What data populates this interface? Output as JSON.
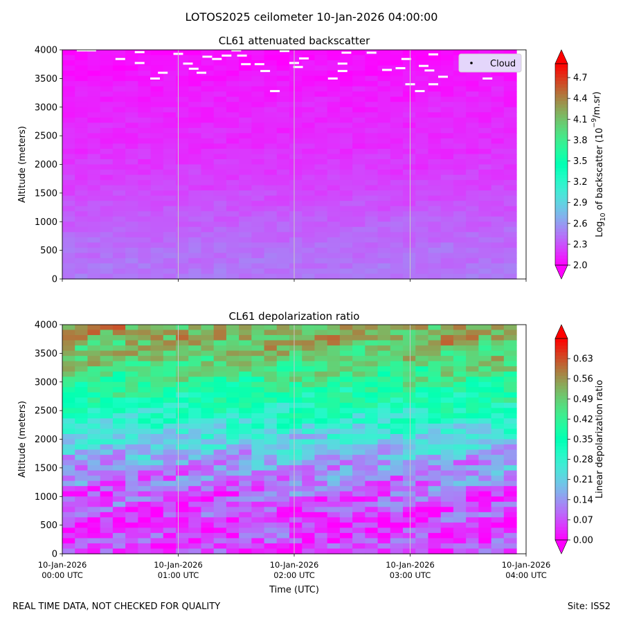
{
  "figure": {
    "suptitle": "LOTOS2025 ceilometer 10-Jan-2026 04:00:00",
    "footer_left": "REAL TIME DATA, NOT CHECKED FOR QUALITY",
    "footer_right": "Site: ISS2"
  },
  "chart_data": [
    {
      "type": "heatmap",
      "title": "CL61 attenuated backscatter",
      "ylabel": "Altitude (meters)",
      "xlabel": "",
      "x_range_utc": [
        "2026-01-10 00:00",
        "2026-01-10 04:00"
      ],
      "x_data_end_utc": "2026-01-10 03:55",
      "ylim": [
        0,
        4000
      ],
      "yticks": [
        0,
        500,
        1000,
        1500,
        2000,
        2500,
        3000,
        3500,
        4000
      ],
      "xticks_hours": [
        0,
        1,
        2,
        3,
        4
      ],
      "xtick_labels_visible": false,
      "grid": "vertical lines at each hour",
      "colormap": "rainbow",
      "colorbar": {
        "label_prefix": "Log",
        "label_sub": "10",
        "label_mid": " of backscatter (10",
        "label_sup": "−9",
        "label_suffix": "/m.sr)",
        "range": [
          2.0,
          4.9
        ],
        "ticks": [
          "2.0",
          "2.3",
          "2.6",
          "2.9",
          "3.2",
          "3.5",
          "3.8",
          "4.1",
          "4.4",
          "4.7"
        ],
        "extend": "both"
      },
      "legend": {
        "placement": "top-right",
        "entries": [
          "Cloud"
        ]
      },
      "profile": [
        {
          "altitude": 0,
          "value": 2.45
        },
        {
          "altitude": 500,
          "value": 2.42
        },
        {
          "altitude": 1000,
          "value": 2.36
        },
        {
          "altitude": 1500,
          "value": 2.27
        },
        {
          "altitude": 2000,
          "value": 2.2
        },
        {
          "altitude": 2500,
          "value": 2.15
        },
        {
          "altitude": 3000,
          "value": 2.13
        },
        {
          "altitude": 3500,
          "value": 2.08
        },
        {
          "altitude": 4000,
          "value": 2.03
        }
      ],
      "cloud_detections": [
        {
          "time": "00:10",
          "altitude": 3990
        },
        {
          "time": "00:15",
          "altitude": 3990
        },
        {
          "time": "00:30",
          "altitude": 3840
        },
        {
          "time": "00:40",
          "altitude": 3770
        },
        {
          "time": "00:40",
          "altitude": 3960
        },
        {
          "time": "00:48",
          "altitude": 3500
        },
        {
          "time": "00:52",
          "altitude": 3600
        },
        {
          "time": "01:00",
          "altitude": 3930
        },
        {
          "time": "01:05",
          "altitude": 3760
        },
        {
          "time": "01:08",
          "altitude": 3670
        },
        {
          "time": "01:12",
          "altitude": 3600
        },
        {
          "time": "01:15",
          "altitude": 3880
        },
        {
          "time": "01:20",
          "altitude": 3840
        },
        {
          "time": "01:25",
          "altitude": 3900
        },
        {
          "time": "01:30",
          "altitude": 3990
        },
        {
          "time": "01:33",
          "altitude": 3900
        },
        {
          "time": "01:35",
          "altitude": 3750
        },
        {
          "time": "01:42",
          "altitude": 3750
        },
        {
          "time": "01:45",
          "altitude": 3630
        },
        {
          "time": "01:50",
          "altitude": 3280
        },
        {
          "time": "01:55",
          "altitude": 3980
        },
        {
          "time": "02:00",
          "altitude": 3770
        },
        {
          "time": "02:02",
          "altitude": 3700
        },
        {
          "time": "02:05",
          "altitude": 3850
        },
        {
          "time": "02:20",
          "altitude": 3500
        },
        {
          "time": "02:25",
          "altitude": 3760
        },
        {
          "time": "02:25",
          "altitude": 3630
        },
        {
          "time": "02:27",
          "altitude": 3950
        },
        {
          "time": "02:40",
          "altitude": 3950
        },
        {
          "time": "02:48",
          "altitude": 3650
        },
        {
          "time": "02:55",
          "altitude": 3680
        },
        {
          "time": "02:58",
          "altitude": 3840
        },
        {
          "time": "03:00",
          "altitude": 3400
        },
        {
          "time": "03:05",
          "altitude": 3280
        },
        {
          "time": "03:07",
          "altitude": 3720
        },
        {
          "time": "03:10",
          "altitude": 3640
        },
        {
          "time": "03:12",
          "altitude": 3400
        },
        {
          "time": "03:12",
          "altitude": 3920
        },
        {
          "time": "03:17",
          "altitude": 3530
        },
        {
          "time": "03:40",
          "altitude": 3500
        }
      ]
    },
    {
      "type": "heatmap",
      "title": "CL61 depolarization ratio",
      "ylabel": "Altitude (meters)",
      "xlabel": "Time (UTC)",
      "x_range_utc": [
        "2026-01-10 00:00",
        "2026-01-10 04:00"
      ],
      "x_data_end_utc": "2026-01-10 03:55",
      "ylim": [
        0,
        4000
      ],
      "yticks": [
        0,
        500,
        1000,
        1500,
        2000,
        2500,
        3000,
        3500,
        4000
      ],
      "xticks_hours": [
        0,
        1,
        2,
        3,
        4
      ],
      "xtick_labels_visible": true,
      "xtick_labels": [
        [
          "10-Jan-2026",
          "00:00 UTC"
        ],
        [
          "10-Jan-2026",
          "01:00 UTC"
        ],
        [
          "10-Jan-2026",
          "02:00 UTC"
        ],
        [
          "10-Jan-2026",
          "03:00 UTC"
        ],
        [
          "10-Jan-2026",
          "04:00 UTC"
        ]
      ],
      "grid": "vertical lines at each hour",
      "colormap": "rainbow",
      "colorbar": {
        "label": "Linear depolarization ratio",
        "range": [
          0.0,
          0.7
        ],
        "ticks": [
          "0.00",
          "0.07",
          "0.14",
          "0.21",
          "0.28",
          "0.35",
          "0.42",
          "0.49",
          "0.56",
          "0.63"
        ],
        "extend": "both"
      },
      "profile": [
        {
          "altitude": 0,
          "value": 0.06
        },
        {
          "altitude": 500,
          "value": 0.05
        },
        {
          "altitude": 1000,
          "value": 0.08
        },
        {
          "altitude": 1500,
          "value": 0.14
        },
        {
          "altitude": 2000,
          "value": 0.22
        },
        {
          "altitude": 2500,
          "value": 0.32
        },
        {
          "altitude": 3000,
          "value": 0.42
        },
        {
          "altitude": 3500,
          "value": 0.5
        },
        {
          "altitude": 4000,
          "value": 0.55
        }
      ],
      "cloud_detections": []
    }
  ]
}
